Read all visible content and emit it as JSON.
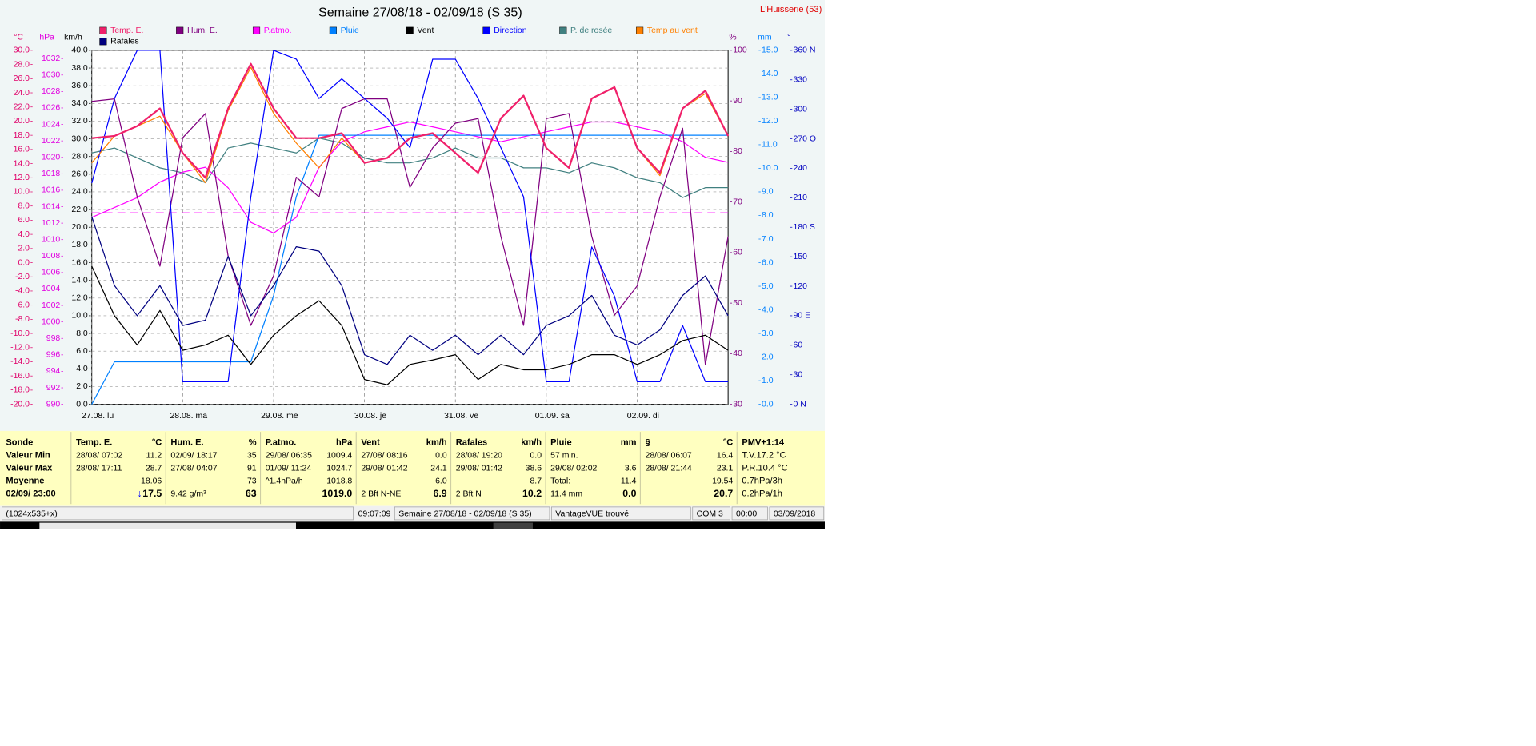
{
  "chart_data": {
    "type": "line",
    "title": "Semaine 27/08/18 - 02/09/18 (S 35)",
    "station": "L'Huisserie (53)",
    "categories": [
      "27.08.  lu",
      null,
      null,
      null,
      "28.08.  ma",
      null,
      null,
      null,
      "29.08.  me",
      null,
      null,
      null,
      "30.08.  je",
      null,
      null,
      null,
      "31.08.  ve",
      null,
      null,
      null,
      "01.09.  sa",
      null,
      null,
      null,
      "02.09.  di",
      null,
      null,
      null,
      null
    ],
    "axes": [
      {
        "label": "°C",
        "color": "#e0006a",
        "side": "left",
        "lim": [
          -20,
          30
        ],
        "ticks": [
          {
            "value": -20,
            "label": "-20.0"
          },
          {
            "value": -18,
            "label": "-18.0"
          },
          {
            "value": -16,
            "label": "-16.0"
          },
          {
            "value": -14,
            "label": "-14.0"
          },
          {
            "value": -12,
            "label": "-12.0"
          },
          {
            "value": -10,
            "label": "-10.0"
          },
          {
            "value": -8,
            "label": "-8.0"
          },
          {
            "value": -6,
            "label": "-6.0"
          },
          {
            "value": -4,
            "label": "-4.0"
          },
          {
            "value": -2,
            "label": "-2.0"
          },
          {
            "value": 0,
            "label": "0.0"
          },
          {
            "value": 2,
            "label": "2.0"
          },
          {
            "value": 4,
            "label": "4.0"
          },
          {
            "value": 6,
            "label": "6.0"
          },
          {
            "value": 8,
            "label": "8.0"
          },
          {
            "value": 10,
            "label": "10.0"
          },
          {
            "value": 12,
            "label": "12.0"
          },
          {
            "value": 14,
            "label": "14.0"
          },
          {
            "value": 16,
            "label": "16.0"
          },
          {
            "value": 18,
            "label": "18.0"
          },
          {
            "value": 20,
            "label": "20.0"
          },
          {
            "value": 22,
            "label": "22.0"
          },
          {
            "value": 24,
            "label": "24.0"
          },
          {
            "value": 26,
            "label": "26.0"
          },
          {
            "value": 28,
            "label": "28.0"
          },
          {
            "value": 30,
            "label": "30.0"
          }
        ]
      },
      {
        "label": "hPa",
        "color": "#e000e0",
        "side": "left",
        "lim": [
          990,
          1033
        ],
        "ticks": [
          990,
          992,
          994,
          996,
          998,
          1000,
          1002,
          1004,
          1006,
          1008,
          1010,
          1012,
          1014,
          1016,
          1018,
          1020,
          1022,
          1024,
          1026,
          1028,
          1030,
          1032
        ]
      },
      {
        "label": "km/h",
        "color": "#000000",
        "side": "left",
        "lim": [
          0,
          40
        ],
        "grid": true,
        "ticks": [
          {
            "value": 0,
            "label": "0.0"
          },
          {
            "value": 2,
            "label": "2.0"
          },
          {
            "value": 4,
            "label": "4.0"
          },
          {
            "value": 6,
            "label": "6.0"
          },
          {
            "value": 8,
            "label": "8.0"
          },
          {
            "value": 10,
            "label": "10.0"
          },
          {
            "value": 12,
            "label": "12.0"
          },
          {
            "value": 14,
            "label": "14.0"
          },
          {
            "value": 16,
            "label": "16.0"
          },
          {
            "value": 18,
            "label": "18.0"
          },
          {
            "value": 20,
            "label": "20.0"
          },
          {
            "value": 22,
            "label": "22.0"
          },
          {
            "value": 24,
            "label": "24.0"
          },
          {
            "value": 26,
            "label": "26.0"
          },
          {
            "value": 28,
            "label": "28.0"
          },
          {
            "value": 30,
            "label": "30.0"
          },
          {
            "value": 32,
            "label": "32.0"
          },
          {
            "value": 34,
            "label": "34.0"
          },
          {
            "value": 36,
            "label": "36.0"
          },
          {
            "value": 38,
            "label": "38.0"
          },
          {
            "value": 40,
            "label": "40.0"
          }
        ]
      },
      {
        "label": "%",
        "color": "#800080",
        "side": "right",
        "lim": [
          30,
          100
        ],
        "ticks": [
          30,
          40,
          50,
          60,
          70,
          80,
          90,
          100
        ]
      },
      {
        "label": "mm",
        "color": "#0080ff",
        "side": "right",
        "lim": [
          0,
          15
        ],
        "ticks": [
          {
            "value": 0,
            "label": "0.0"
          },
          {
            "value": 1,
            "label": "1.0"
          },
          {
            "value": 2,
            "label": "2.0"
          },
          {
            "value": 3,
            "label": "3.0"
          },
          {
            "value": 4,
            "label": "4.0"
          },
          {
            "value": 5,
            "label": "5.0"
          },
          {
            "value": 6,
            "label": "6.0"
          },
          {
            "value": 7,
            "label": "7.0"
          },
          {
            "value": 8,
            "label": "8.0"
          },
          {
            "value": 9,
            "label": "9.0"
          },
          {
            "value": 10,
            "label": "10.0"
          },
          {
            "value": 11,
            "label": "11.0"
          },
          {
            "value": 12,
            "label": "12.0"
          },
          {
            "value": 13,
            "label": "13.0"
          },
          {
            "value": 14,
            "label": "14.0"
          },
          {
            "value": 15,
            "label": "15.0"
          }
        ]
      },
      {
        "label": "°",
        "color": "#0000c0",
        "side": "right",
        "lim": [
          0,
          360
        ],
        "ticks": [
          {
            "value": 0,
            "label": "0 N"
          },
          30,
          60,
          {
            "value": 90,
            "label": "90 E"
          },
          120,
          150,
          {
            "value": 180,
            "label": "180 S"
          },
          210,
          240,
          {
            "value": 270,
            "label": "270 O"
          },
          300,
          330,
          {
            "value": 360,
            "label": "360 N"
          }
        ]
      }
    ],
    "reference_lines": [
      {
        "axis": 1,
        "value": 1013.25,
        "color": "#ff00ff"
      }
    ],
    "series": [
      {
        "name": "Temp. E.",
        "color": "#f0206a",
        "axis": 0,
        "values": [
          17.6,
          17.9,
          19.3,
          21.8,
          15.5,
          12.0,
          21.8,
          28.1,
          21.8,
          17.6,
          17.6,
          18.3,
          14.1,
          14.8,
          17.6,
          18.3,
          15.5,
          12.7,
          20.4,
          23.6,
          16.2,
          13.4,
          23.2,
          24.8,
          16.2,
          12.7,
          21.8,
          24.3,
          17.9
        ]
      },
      {
        "name": "Hum. E.",
        "color": "#800080",
        "axis": 3,
        "values": [
          89.9,
          90.4,
          71,
          57.3,
          82.7,
          87.5,
          59.3,
          45.6,
          55.4,
          74.9,
          71,
          88.5,
          90.4,
          90.4,
          72.9,
          80.7,
          85.6,
          86.5,
          63.2,
          45.6,
          86.5,
          87.5,
          63.2,
          47.6,
          53.4,
          71,
          84.6,
          37.8,
          63.2
        ]
      },
      {
        "name": "P.atmo.",
        "color": "#ff00ff",
        "axis": 1,
        "values": [
          1012.7,
          1013.9,
          1015.1,
          1017,
          1018.2,
          1018.8,
          1016.3,
          1012.1,
          1010.8,
          1012.7,
          1018.8,
          1021.9,
          1023.1,
          1023.7,
          1024.3,
          1023.7,
          1023.1,
          1022.5,
          1021.9,
          1022.5,
          1023.1,
          1023.7,
          1024.3,
          1024.3,
          1023.7,
          1023.1,
          1021.9,
          1020,
          1019.4
        ]
      },
      {
        "name": "Pluie",
        "color": "#0080ff",
        "axis": 4,
        "values": [
          0,
          1.8,
          1.8,
          1.8,
          1.8,
          1.8,
          1.8,
          1.8,
          4.6,
          8.8,
          11.4,
          11.4,
          11.4,
          11.4,
          11.4,
          11.4,
          11.4,
          11.4,
          11.4,
          11.4,
          11.4,
          11.4,
          11.4,
          11.4,
          11.4,
          11.4,
          11.4,
          11.4,
          11.4
        ]
      },
      {
        "name": "Vent",
        "color": "#000000",
        "axis": 2,
        "values": [
          15.6,
          10,
          6.7,
          10.6,
          6.1,
          6.7,
          7.8,
          4.5,
          7.8,
          10,
          11.7,
          8.9,
          2.8,
          2.2,
          4.5,
          5,
          5.6,
          2.8,
          4.5,
          3.9,
          3.9,
          4.5,
          5.6,
          5.6,
          4.5,
          5.6,
          7.2,
          7.8,
          6.1
        ]
      },
      {
        "name": "Direction",
        "color": "#0000ff",
        "axis": 5,
        "values": [
          225,
          311,
          360,
          360,
          23,
          23,
          23,
          211,
          360,
          351,
          311,
          331,
          311,
          291,
          261,
          351,
          351,
          311,
          261,
          211,
          23,
          23,
          160,
          110,
          23,
          23,
          80,
          23,
          23
        ]
      },
      {
        "name": "P. de rosée",
        "color": "#408080",
        "axis": 0,
        "values": [
          15.5,
          16.2,
          14.8,
          13.4,
          12.7,
          11.3,
          16.2,
          16.9,
          16.2,
          15.5,
          17.6,
          16.9,
          14.8,
          14.1,
          14.1,
          14.8,
          16.2,
          14.8,
          14.8,
          13.4,
          13.4,
          12.7,
          14.1,
          13.4,
          12,
          11.3,
          9.2,
          10.6,
          10.6
        ]
      },
      {
        "name": "Temp au vent",
        "color": "#ff8000",
        "axis": 0,
        "values": [
          14.1,
          17.9,
          19.3,
          20.7,
          15.5,
          11.3,
          21.5,
          27.6,
          21.1,
          16.9,
          13.4,
          17.6,
          14.1,
          14.8,
          17.6,
          18.3,
          15.5,
          12.7,
          20.4,
          23.6,
          16.2,
          13.4,
          23.2,
          24.8,
          16.2,
          12.3,
          21.8,
          23.9,
          17.9
        ]
      },
      {
        "name": "Rafales",
        "color": "#000080",
        "axis": 2,
        "values": [
          21.2,
          13.4,
          10,
          13.4,
          8.9,
          9.5,
          16.7,
          10,
          13.4,
          17.8,
          17.3,
          13.4,
          5.6,
          4.5,
          7.8,
          6.1,
          7.8,
          5.6,
          7.8,
          5.6,
          8.9,
          10,
          12.3,
          7.8,
          6.7,
          8.4,
          12.3,
          14.5,
          10
        ]
      }
    ]
  },
  "table": {
    "row_labels": [
      "Sonde",
      "Valeur Min",
      "Valeur Max",
      "Moyenne",
      "02/09/ 23:00"
    ],
    "columns": [
      {
        "header": [
          "Temp. E.",
          "°C"
        ],
        "trend": "↓",
        "cells": [
          [
            "28/08/  07:02",
            "11.2"
          ],
          [
            "28/08/  17:11",
            "28.7"
          ],
          [
            null,
            "18.06"
          ],
          [
            null,
            "17.5"
          ]
        ]
      },
      {
        "header": [
          "Hum. E.",
          "%"
        ],
        "cells": [
          [
            "02/09/  18:17",
            "35"
          ],
          [
            "27/08/  04:07",
            "91"
          ],
          [
            null,
            "73"
          ],
          [
            "9.42 g/m³",
            "63"
          ]
        ]
      },
      {
        "header": [
          "P.atmo.",
          "hPa"
        ],
        "cells": [
          [
            "29/08/  06:35",
            "1009.4"
          ],
          [
            "01/09/  11:24",
            "1024.7"
          ],
          [
            "^1.4hPa/h",
            "1018.8"
          ],
          [
            null,
            "1019.0"
          ]
        ]
      },
      {
        "header": [
          "Vent",
          "km/h"
        ],
        "cells": [
          [
            "27/08/  08:16",
            "0.0"
          ],
          [
            "29/08/  01:42",
            "24.1"
          ],
          [
            null,
            "6.0"
          ],
          [
            "2 Bft N-NE",
            "6.9"
          ]
        ]
      },
      {
        "header": [
          "Rafales",
          "km/h"
        ],
        "cells": [
          [
            "28/08/  19:20",
            "0.0"
          ],
          [
            "29/08/  01:42",
            "38.6"
          ],
          [
            null,
            "8.7"
          ],
          [
            "2 Bft N",
            "10.2"
          ]
        ]
      },
      {
        "header": [
          "Pluie",
          "mm"
        ],
        "cells": [
          [
            "57 min.",
            null
          ],
          [
            "29/08/  02:02",
            "3.6"
          ],
          [
            "Total:",
            "11.4"
          ],
          [
            "11.4 mm",
            "0.0"
          ]
        ]
      },
      {
        "header": [
          "§",
          "°C"
        ],
        "cells": [
          [
            "28/08/  06:07",
            "16.4"
          ],
          [
            "28/08/  21:44",
            "23.1"
          ],
          [
            null,
            "19.54"
          ],
          [
            null,
            "20.7"
          ]
        ]
      }
    ],
    "extra": [
      "PMV+1:14",
      "T.V.17.2 °C",
      "P.R.10.4 °C",
      "0.7hPa/3h",
      "0.2hPa/1h"
    ]
  },
  "status_bar": [
    "(1024x535+x)",
    "09:07:09",
    "Semaine 27/08/18 - 02/09/18 (S 35)",
    "VantageVUE trouvé",
    "COM 3",
    "00:00",
    "03/09/2018"
  ]
}
